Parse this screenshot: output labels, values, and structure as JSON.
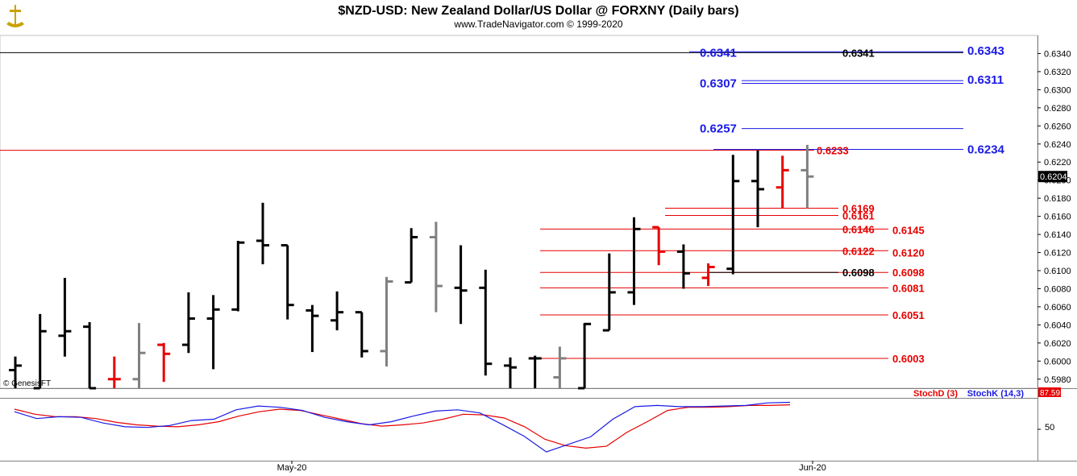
{
  "header": {
    "title": "$NZD-USD:  New Zealand Dollar/US Dollar @ FORXNY  (Daily bars)",
    "subtitle": "www.TradeNavigator.com © 1999-2020"
  },
  "copyright": "© GenesisFT",
  "colors": {
    "up_bar": "#000000",
    "reversal_bar": "#e60000",
    "gray_bar": "#808080",
    "blue_level": "#1a1ae6",
    "red_level": "#e60000",
    "stoch_d": "#e60000",
    "stoch_k": "#1a1ae6"
  },
  "chart_data": [
    {
      "type": "ohlc",
      "y_axis": {
        "ylim": [
          0.597,
          0.636
        ],
        "ticks": [
          "0.6340",
          "0.6320",
          "0.6300",
          "0.6280",
          "0.6260",
          "0.6240",
          "0.6220",
          "0.6200",
          "0.6180",
          "0.6160",
          "0.6140",
          "0.6120",
          "0.6100",
          "0.6080",
          "0.6060",
          "0.6040",
          "0.6020",
          "0.6000",
          "0.5980"
        ],
        "last_price": "0.6204"
      },
      "x_axis": {
        "tick_labels": [
          "May-20",
          "Jun-20"
        ]
      },
      "bars": [
        {
          "o": 0.599,
          "h": 0.6005,
          "l": 0.597,
          "c": 0.5995,
          "color": "black"
        },
        {
          "o": 0.597,
          "h": 0.6052,
          "l": 0.597,
          "c": 0.6033,
          "color": "black"
        },
        {
          "o": 0.6028,
          "h": 0.6092,
          "l": 0.6005,
          "c": 0.6033,
          "color": "black"
        },
        {
          "o": 0.6038,
          "h": 0.6043,
          "l": 0.597,
          "c": 0.597,
          "color": "black"
        },
        {
          "o": 0.598,
          "h": 0.6005,
          "l": 0.597,
          "c": 0.598,
          "color": "red"
        },
        {
          "o": 0.598,
          "h": 0.6042,
          "l": 0.597,
          "c": 0.6009,
          "color": "gray"
        },
        {
          "o": 0.6018,
          "h": 0.602,
          "l": 0.5977,
          "c": 0.6008,
          "color": "red"
        },
        {
          "o": 0.6018,
          "h": 0.6076,
          "l": 0.6009,
          "c": 0.6047,
          "color": "black"
        },
        {
          "o": 0.6047,
          "h": 0.6073,
          "l": 0.5991,
          "c": 0.6057,
          "color": "black"
        },
        {
          "o": 0.6057,
          "h": 0.6133,
          "l": 0.6055,
          "c": 0.6131,
          "color": "black"
        },
        {
          "o": 0.6133,
          "h": 0.6175,
          "l": 0.6107,
          "c": 0.6128,
          "color": "black"
        },
        {
          "o": 0.6128,
          "h": 0.6128,
          "l": 0.6046,
          "c": 0.6062,
          "color": "black"
        },
        {
          "o": 0.6056,
          "h": 0.6062,
          "l": 0.601,
          "c": 0.605,
          "color": "black"
        },
        {
          "o": 0.6045,
          "h": 0.6077,
          "l": 0.6034,
          "c": 0.6054,
          "color": "black"
        },
        {
          "o": 0.6054,
          "h": 0.6054,
          "l": 0.6004,
          "c": 0.6011,
          "color": "black"
        },
        {
          "o": 0.6011,
          "h": 0.6093,
          "l": 0.5994,
          "c": 0.6088,
          "color": "gray"
        },
        {
          "o": 0.6087,
          "h": 0.6147,
          "l": 0.6087,
          "c": 0.6137,
          "color": "black"
        },
        {
          "o": 0.6137,
          "h": 0.6154,
          "l": 0.6054,
          "c": 0.6083,
          "color": "gray"
        },
        {
          "o": 0.6081,
          "h": 0.6128,
          "l": 0.6041,
          "c": 0.6078,
          "color": "black"
        },
        {
          "o": 0.6081,
          "h": 0.6101,
          "l": 0.5984,
          "c": 0.5997,
          "color": "black"
        },
        {
          "o": 0.5995,
          "h": 0.6004,
          "l": 0.597,
          "c": 0.5993,
          "color": "black"
        },
        {
          "o": 0.6003,
          "h": 0.6006,
          "l": 0.597,
          "c": 0.6003,
          "color": "black"
        },
        {
          "o": 0.5982,
          "h": 0.6016,
          "l": 0.597,
          "c": 0.6003,
          "color": "gray"
        },
        {
          "o": 0.597,
          "h": 0.6042,
          "l": 0.597,
          "c": 0.6041,
          "color": "black"
        },
        {
          "o": 0.6034,
          "h": 0.6119,
          "l": 0.6034,
          "c": 0.6076,
          "color": "black"
        },
        {
          "o": 0.6076,
          "h": 0.6159,
          "l": 0.6062,
          "c": 0.6146,
          "color": "black"
        },
        {
          "o": 0.6148,
          "h": 0.6148,
          "l": 0.6106,
          "c": 0.6121,
          "color": "red"
        },
        {
          "o": 0.6121,
          "h": 0.6129,
          "l": 0.608,
          "c": 0.6097,
          "color": "black"
        },
        {
          "o": 0.6092,
          "h": 0.6108,
          "l": 0.6083,
          "c": 0.6104,
          "color": "red"
        },
        {
          "o": 0.6102,
          "h": 0.6228,
          "l": 0.6096,
          "c": 0.6199,
          "color": "black"
        },
        {
          "o": 0.6199,
          "h": 0.6233,
          "l": 0.6148,
          "c": 0.619,
          "color": "black"
        },
        {
          "o": 0.6192,
          "h": 0.6227,
          "l": 0.6169,
          "c": 0.6211,
          "color": "red"
        },
        {
          "o": 0.6211,
          "h": 0.6239,
          "l": 0.6169,
          "c": 0.6204,
          "color": "gray"
        }
      ],
      "levels": [
        {
          "value": 0.6341,
          "label": "0.6341",
          "color": "blue",
          "side": "left"
        },
        {
          "value": 0.6341,
          "label": "0.6341",
          "color": "black",
          "side": "mid"
        },
        {
          "value": 0.6343,
          "label": "0.6343",
          "color": "blue",
          "side": "right"
        },
        {
          "value": 0.6307,
          "label": "0.6307",
          "color": "blue",
          "side": "left"
        },
        {
          "value": 0.6311,
          "label": "0.6311",
          "color": "blue",
          "side": "right"
        },
        {
          "value": 0.6257,
          "label": "0.6257",
          "color": "blue",
          "side": "left"
        },
        {
          "value": 0.6234,
          "label": "0.6234",
          "color": "blue",
          "side": "right"
        },
        {
          "value": 0.6233,
          "label": "0.6233",
          "color": "red",
          "side": "mid"
        },
        {
          "value": 0.6169,
          "label": "0.6169",
          "color": "red",
          "side": "mid"
        },
        {
          "value": 0.6161,
          "label": "0.6161",
          "color": "red",
          "side": "mid"
        },
        {
          "value": 0.6146,
          "label": "0.6146",
          "color": "red",
          "side": "mid"
        },
        {
          "value": 0.6145,
          "label": "0.6145",
          "color": "red",
          "side": "right"
        },
        {
          "value": 0.6122,
          "label": "0.6122",
          "color": "red",
          "side": "mid"
        },
        {
          "value": 0.612,
          "label": "0.6120",
          "color": "red",
          "side": "right"
        },
        {
          "value": 0.6098,
          "label": "0.6098",
          "color": "black",
          "side": "mid"
        },
        {
          "value": 0.6098,
          "label": "0.6098",
          "color": "red",
          "side": "right"
        },
        {
          "value": 0.6081,
          "label": "0.6081",
          "color": "red",
          "side": "right"
        },
        {
          "value": 0.6051,
          "label": "0.6051",
          "color": "red",
          "side": "right"
        },
        {
          "value": 0.6003,
          "label": "0.6003",
          "color": "red",
          "side": "right"
        }
      ]
    },
    {
      "type": "line",
      "legend": [
        "StochD (3)",
        "StochK (14,3)"
      ],
      "y_axis": {
        "ylim": [
          0,
          100
        ],
        "ticks": [
          "50"
        ],
        "last_value": "87.59"
      },
      "series": [
        {
          "name": "StochD (3)",
          "color": "red",
          "values": [
            82,
            74,
            70,
            70,
            67,
            61,
            57,
            55,
            54,
            57,
            62,
            71,
            78,
            82,
            80,
            73,
            66,
            59,
            55,
            57,
            60,
            66,
            74,
            73,
            68,
            54,
            34,
            24,
            20,
            23,
            45,
            62,
            80,
            85,
            85,
            86,
            88,
            88,
            89
          ]
        },
        {
          "name": "StochK (14,3)",
          "color": "blue",
          "values": [
            78,
            67,
            70,
            69,
            60,
            54,
            53,
            56,
            64,
            66,
            81,
            87,
            85,
            80,
            69,
            62,
            57,
            62,
            71,
            79,
            81,
            76,
            58,
            39,
            14,
            26,
            38,
            66,
            86,
            88,
            86,
            86,
            87,
            88,
            92,
            93
          ]
        }
      ]
    }
  ]
}
